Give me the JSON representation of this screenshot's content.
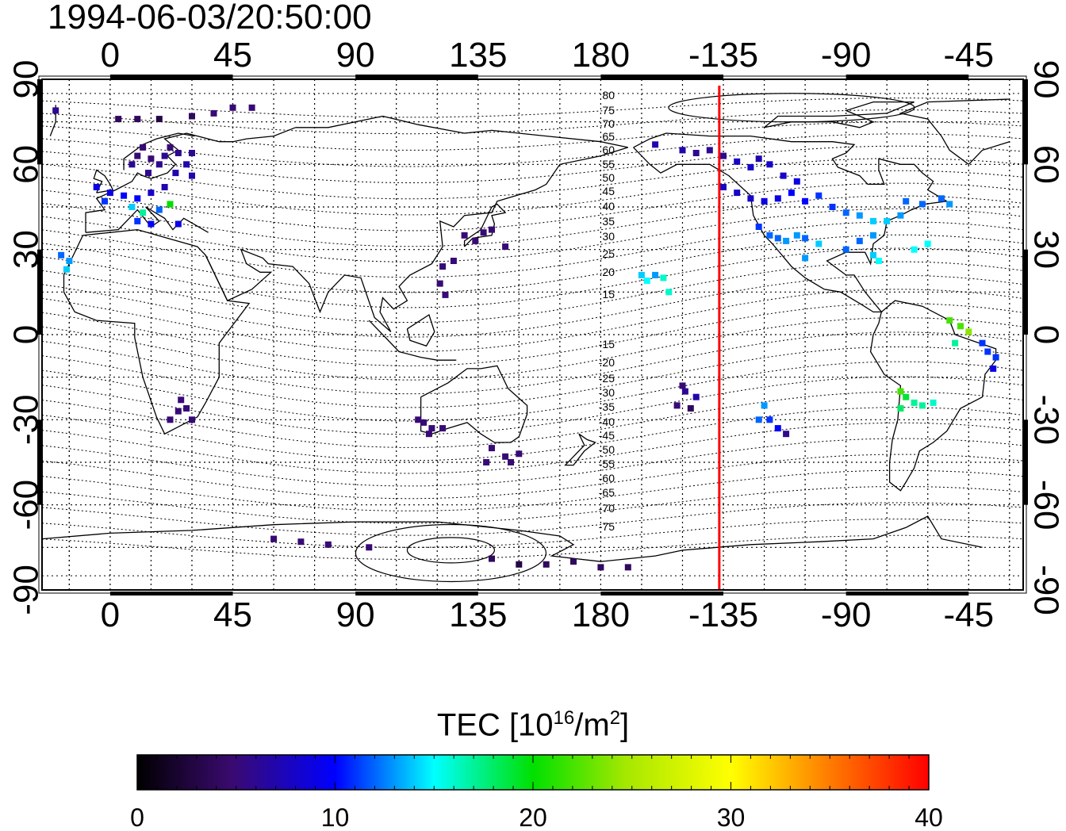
{
  "timestamp": "1994-06-03/20:50:00",
  "map": {
    "top_lon_labels": [
      "0",
      "45",
      "90",
      "135",
      "180",
      "-135",
      "-90",
      "-45"
    ],
    "bottom_lon_labels": [
      "0",
      "45",
      "90",
      "135",
      "180",
      "-135",
      "-90",
      "-45"
    ],
    "left_lat_labels": [
      "90",
      "60",
      "30",
      "0",
      "-30",
      "-60",
      "-90"
    ],
    "right_lat_labels": [
      "90",
      "60",
      "30",
      "0",
      "-30",
      "-60",
      "-90"
    ],
    "contour_labels": [
      "80",
      "75",
      "70",
      "65",
      "60",
      "55",
      "50",
      "45",
      "40",
      "35",
      "30",
      "25",
      "20",
      "15",
      "-15",
      "-20",
      "-25",
      "-30",
      "-35",
      "-40",
      "-45",
      "-50",
      "-55",
      "-60",
      "-65",
      "-70",
      "-75"
    ],
    "meridian_line_color": "#ff0000",
    "meridian_line_lon": -136.5
  },
  "colorbar": {
    "label_prefix": "TEC  [10",
    "label_exp": "16",
    "label_mid": "/m",
    "label_exp2": "2",
    "label_suffix": "]",
    "ticks": [
      "0",
      "10",
      "20",
      "30",
      "40"
    ],
    "min": 0,
    "max": 40
  },
  "tec_points": [
    [
      -20,
      79,
      6
    ],
    [
      3,
      76,
      4
    ],
    [
      10,
      76,
      4
    ],
    [
      18,
      76,
      3
    ],
    [
      30,
      77,
      4
    ],
    [
      38,
      78,
      5
    ],
    [
      45,
      80,
      5
    ],
    [
      52,
      80,
      5
    ],
    [
      10,
      63,
      5
    ],
    [
      15,
      62,
      5
    ],
    [
      20,
      63,
      6
    ],
    [
      25,
      64,
      6
    ],
    [
      30,
      64,
      6
    ],
    [
      12,
      66,
      5
    ],
    [
      22,
      66,
      5
    ],
    [
      8,
      60,
      6
    ],
    [
      18,
      60,
      6
    ],
    [
      28,
      60,
      7
    ],
    [
      14,
      57,
      6
    ],
    [
      24,
      57,
      7
    ],
    [
      30,
      56,
      7
    ],
    [
      -5,
      52,
      9
    ],
    [
      0,
      50,
      9
    ],
    [
      5,
      49,
      10
    ],
    [
      10,
      48,
      10
    ],
    [
      15,
      50,
      8
    ],
    [
      20,
      52,
      7
    ],
    [
      -2,
      47,
      11
    ],
    [
      8,
      45,
      14
    ],
    [
      12,
      43,
      17
    ],
    [
      18,
      44,
      12
    ],
    [
      22,
      46,
      20
    ],
    [
      10,
      40,
      11
    ],
    [
      15,
      39,
      10
    ],
    [
      25,
      39,
      9
    ],
    [
      -18,
      28,
      12
    ],
    [
      -15,
      26,
      13
    ],
    [
      -16,
      23,
      14
    ],
    [
      130,
      35,
      5
    ],
    [
      137,
      36,
      5
    ],
    [
      140,
      37,
      5
    ],
    [
      134,
      33,
      5
    ],
    [
      145,
      31,
      5
    ],
    [
      126,
      26,
      5
    ],
    [
      122,
      24,
      5
    ],
    [
      121,
      18,
      5
    ],
    [
      123,
      14,
      5
    ],
    [
      25,
      -27,
      5
    ],
    [
      28,
      -26,
      5
    ],
    [
      22,
      -30,
      5
    ],
    [
      30,
      -30,
      5
    ],
    [
      26,
      -23,
      5
    ],
    [
      115,
      -31,
      5
    ],
    [
      118,
      -33,
      5
    ],
    [
      117,
      -35,
      5
    ],
    [
      113,
      -30,
      5
    ],
    [
      122,
      -33,
      5
    ],
    [
      140,
      -40,
      5
    ],
    [
      145,
      -43,
      5
    ],
    [
      150,
      -42,
      5
    ],
    [
      147,
      -45,
      5
    ],
    [
      138,
      -45,
      5
    ],
    [
      -165,
      21,
      14
    ],
    [
      -163,
      19,
      15
    ],
    [
      -160,
      21,
      13
    ],
    [
      -157,
      20,
      16
    ],
    [
      -155,
      15,
      16
    ],
    [
      -150,
      -18,
      5
    ],
    [
      -149,
      -20,
      6
    ],
    [
      -152,
      -25,
      5
    ],
    [
      -147,
      -26,
      4
    ],
    [
      -145,
      -22,
      7
    ],
    [
      -122,
      -30,
      12
    ],
    [
      -118,
      -30,
      11
    ],
    [
      -115,
      -33,
      10
    ],
    [
      -112,
      -35,
      6
    ],
    [
      -120,
      -25,
      13
    ],
    [
      -160,
      67,
      7
    ],
    [
      -150,
      65,
      7
    ],
    [
      -145,
      64,
      6
    ],
    [
      -140,
      65,
      6
    ],
    [
      -135,
      63,
      6
    ],
    [
      -130,
      61,
      8
    ],
    [
      -125,
      59,
      8
    ],
    [
      -122,
      62,
      7
    ],
    [
      -118,
      60,
      8
    ],
    [
      -113,
      56,
      8
    ],
    [
      -108,
      54,
      9
    ],
    [
      -135,
      52,
      8
    ],
    [
      -130,
      50,
      8
    ],
    [
      -125,
      48,
      8
    ],
    [
      -120,
      47,
      9
    ],
    [
      -115,
      48,
      9
    ],
    [
      -110,
      50,
      10
    ],
    [
      -105,
      47,
      10
    ],
    [
      -100,
      49,
      11
    ],
    [
      -122,
      38,
      11
    ],
    [
      -118,
      35,
      12
    ],
    [
      -115,
      34,
      12
    ],
    [
      -112,
      33,
      13
    ],
    [
      -108,
      35,
      13
    ],
    [
      -105,
      34,
      12
    ],
    [
      -100,
      32,
      14
    ],
    [
      -105,
      27,
      13
    ],
    [
      -95,
      45,
      11
    ],
    [
      -90,
      43,
      12
    ],
    [
      -85,
      42,
      13
    ],
    [
      -80,
      40,
      14
    ],
    [
      -75,
      40,
      14
    ],
    [
      -70,
      42,
      13
    ],
    [
      -80,
      35,
      13
    ],
    [
      -85,
      33,
      12
    ],
    [
      -90,
      30,
      12
    ],
    [
      -80,
      28,
      14
    ],
    [
      -78,
      26,
      15
    ],
    [
      -68,
      47,
      12
    ],
    [
      -62,
      46,
      12
    ],
    [
      -55,
      48,
      12
    ],
    [
      -52,
      46,
      13
    ],
    [
      -65,
      30,
      15
    ],
    [
      -60,
      32,
      15
    ],
    [
      -52,
      5,
      22
    ],
    [
      -48,
      3,
      22
    ],
    [
      -45,
      1,
      24
    ],
    [
      -50,
      -3,
      17
    ],
    [
      -40,
      -3,
      11
    ],
    [
      -38,
      -6,
      11
    ],
    [
      -35,
      -8,
      11
    ],
    [
      -36,
      -12,
      9
    ],
    [
      -70,
      -20,
      22
    ],
    [
      -68,
      -22,
      19
    ],
    [
      -65,
      -24,
      17
    ],
    [
      -70,
      -26,
      18
    ],
    [
      -62,
      -25,
      17
    ],
    [
      -58,
      -24,
      16
    ],
    [
      60,
      -72,
      5
    ],
    [
      70,
      -73,
      5
    ],
    [
      80,
      -74,
      5
    ],
    [
      95,
      -75,
      5
    ],
    [
      140,
      -79,
      4
    ],
    [
      150,
      -81,
      3
    ],
    [
      160,
      -81,
      4
    ],
    [
      170,
      -80,
      4
    ],
    [
      180,
      -82,
      4
    ],
    [
      190,
      -82,
      4
    ]
  ]
}
